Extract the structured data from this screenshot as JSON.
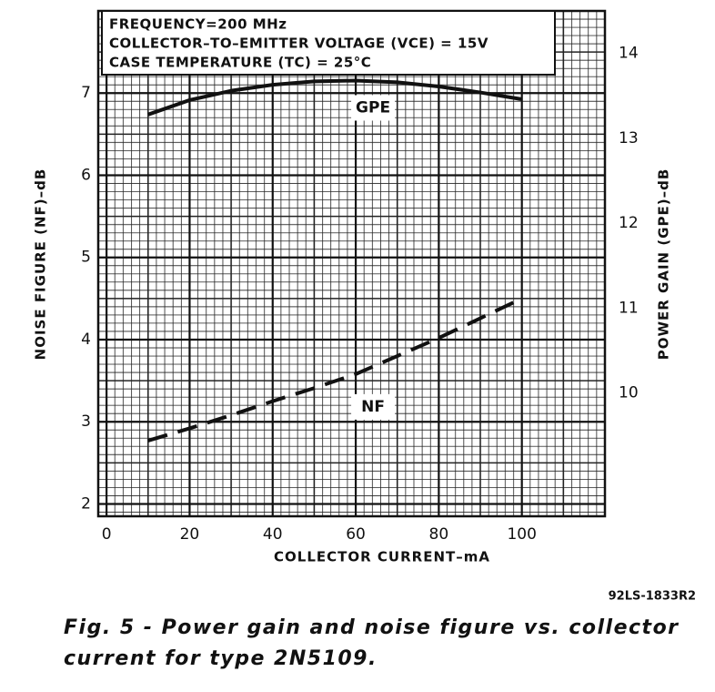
{
  "chart_data": {
    "type": "line",
    "annotations": [
      "FREQUENCY=200 MHz",
      "COLLECTOR–TO–EMITTER VOLTAGE (VCE) = 15V",
      "CASE TEMPERATURE (TC) = 25°C"
    ],
    "x_label": "COLLECTOR CURRENT–mA",
    "y_label": "NOISE FIGURE (NF)–dB",
    "y2_label": "POWER GAIN (GPE)–dB",
    "x": [
      10,
      20,
      30,
      40,
      50,
      60,
      70,
      80,
      90,
      100
    ],
    "series": [
      {
        "name": "GPE",
        "color": "#111111",
        "axis": "y2",
        "dashed": false,
        "values": [
          13.28,
          13.45,
          13.56,
          13.63,
          13.67,
          13.68,
          13.66,
          13.61,
          13.54,
          13.46
        ]
      },
      {
        "name": "NF",
        "color": "#111111",
        "dashed": true,
        "values": [
          2.77,
          2.92,
          3.08,
          3.25,
          3.41,
          3.58,
          3.8,
          4.02,
          4.26,
          4.5
        ]
      }
    ],
    "xlim": [
      -2,
      120
    ],
    "xticks": [
      0,
      20,
      40,
      60,
      80,
      100
    ],
    "ylim": [
      1.85,
      8
    ],
    "yticks": [
      2,
      3,
      4,
      5,
      6,
      7
    ],
    "y2lim": [
      8.55,
      14.5
    ],
    "y2ticks": [
      10,
      11,
      12,
      13,
      14
    ],
    "grid": true,
    "figure_code": "92LS-1833R2",
    "caption": [
      "Fig. 5 - Power gain and noise figure vs. collector",
      "current for type 2N5109."
    ]
  }
}
